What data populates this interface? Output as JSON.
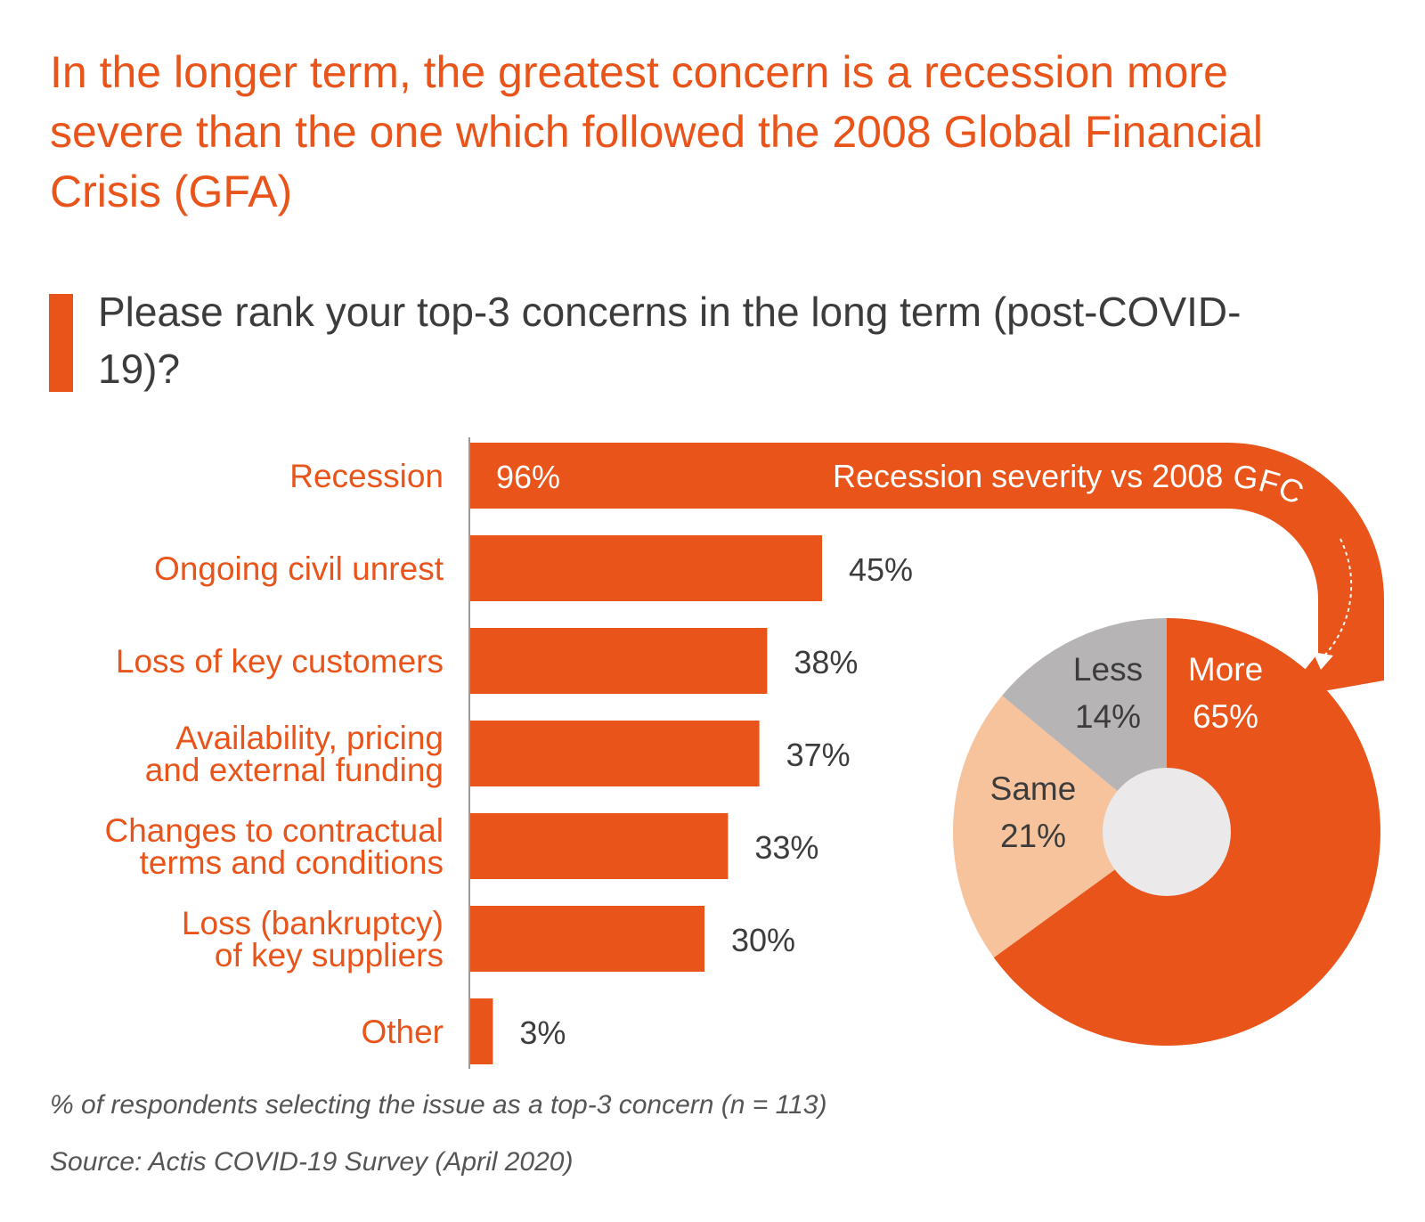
{
  "headline": "In the longer term, the greatest concern is a recession more severe than the one which followed the 2008 Global Financial Crisis (GFA)",
  "question": "Please rank your top-3 concerns in the long term (post-COVID-19)?",
  "footnote": "% of respondents selecting the issue as a top-3 concern (n = 113)",
  "source": "Source: Actis COVID-19 Survey (April 2020)",
  "colors": {
    "accent": "#e8541a",
    "label_text": "#e8541a",
    "value_text": "#3c3c3c",
    "same": "#f7c39d",
    "less": "#b7b4b6",
    "donut_hole": "#ebe9ea"
  },
  "chart_data": [
    {
      "type": "bar",
      "orientation": "horizontal",
      "categories": [
        [
          "Recession"
        ],
        [
          "Ongoing civil unrest"
        ],
        [
          "Loss of key customers"
        ],
        [
          "Availability, pricing",
          "and external funding"
        ],
        [
          "Changes to contractual",
          "terms and conditions"
        ],
        [
          "Loss (bankruptcy)",
          "of key suppliers"
        ],
        [
          "Other"
        ]
      ],
      "values": [
        96,
        45,
        38,
        37,
        33,
        30,
        3
      ],
      "value_labels": [
        "96%",
        "45%",
        "38%",
        "37%",
        "33%",
        "30%",
        "3%"
      ],
      "unit": "%"
    },
    {
      "type": "pie",
      "title": "Recession severity vs 2008 GFC",
      "labels": [
        "More",
        "Same",
        "Less"
      ],
      "values": [
        65,
        21,
        14
      ],
      "value_labels": [
        "65%",
        "21%",
        "14%"
      ],
      "colors": [
        "#e8541a",
        "#f7c39d",
        "#b7b4b6"
      ]
    }
  ]
}
